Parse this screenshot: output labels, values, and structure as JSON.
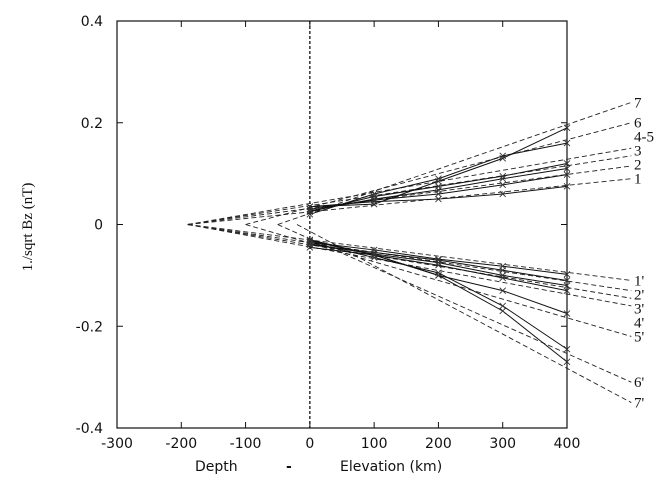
{
  "chart_data": {
    "type": "line",
    "ylabel": "1./sqrt Bz (nT)",
    "xlabel_left": "Depth",
    "xlabel_dash": "-",
    "xlabel_right": "Elevation (km)",
    "xlim": [
      -300,
      400
    ],
    "ylim": [
      -0.4,
      0.4
    ],
    "xticks": [
      -300,
      -200,
      -100,
      0,
      100,
      200,
      300,
      400
    ],
    "xtick_labels": [
      "-300",
      "-200",
      "-100",
      "0",
      "100",
      "200",
      "300",
      "400"
    ],
    "yticks": [
      -0.4,
      -0.2,
      0,
      0.2,
      0.4
    ],
    "ytick_labels": [
      "-0.4",
      "-0.2",
      "0",
      "0.2",
      "0.4"
    ],
    "reference_line_x": 0,
    "measured_x": [
      0,
      100,
      200,
      300,
      400
    ],
    "series": [
      {
        "name": "1",
        "values": [
          0.035,
          0.045,
          0.05,
          0.06,
          0.075
        ],
        "fit_start": [
          -190,
          0
        ],
        "fit_end_x": 500,
        "fit_end_y": 0.09
      },
      {
        "name": "2",
        "values": [
          0.03,
          0.048,
          0.06,
          0.078,
          0.098
        ],
        "fit_start": [
          -190,
          0
        ],
        "fit_end_x": 500,
        "fit_end_y": 0.115
      },
      {
        "name": "3",
        "values": [
          0.027,
          0.05,
          0.068,
          0.09,
          0.11
        ],
        "fit_start": [
          -190,
          0
        ],
        "fit_end_x": 500,
        "fit_end_y": 0.135
      },
      {
        "name": "4-5",
        "values": [
          0.025,
          0.055,
          0.075,
          0.095,
          0.12
        ],
        "fit_start": [
          -190,
          0
        ],
        "fit_end_x": 500,
        "fit_end_y": 0.15
      },
      {
        "name": "6",
        "values": [
          0.02,
          0.06,
          0.09,
          0.135,
          0.16
        ],
        "fit_start": [
          -100,
          0
        ],
        "fit_end_x": 500,
        "fit_end_y": 0.2
      },
      {
        "name": "7",
        "values": [
          0.035,
          0.04,
          0.085,
          0.13,
          0.19
        ],
        "fit_start": [
          -50,
          0
        ],
        "fit_end_x": 500,
        "fit_end_y": 0.24
      },
      {
        "name": "1'",
        "values": [
          -0.035,
          -0.05,
          -0.068,
          -0.082,
          -0.098
        ],
        "fit_start": [
          -190,
          0
        ],
        "fit_end_x": 500,
        "fit_end_y": -0.11
      },
      {
        "name": "2'",
        "values": [
          -0.04,
          -0.055,
          -0.07,
          -0.09,
          -0.11
        ],
        "fit_start": [
          -190,
          0
        ],
        "fit_end_x": 500,
        "fit_end_y": -0.13
      },
      {
        "name": "3'",
        "values": [
          -0.038,
          -0.058,
          -0.075,
          -0.1,
          -0.12
        ],
        "fit_start": [
          -190,
          0
        ],
        "fit_end_x": 500,
        "fit_end_y": -0.145
      },
      {
        "name": "4'",
        "values": [
          -0.032,
          -0.06,
          -0.08,
          -0.105,
          -0.13
        ],
        "fit_start": [
          -190,
          0
        ],
        "fit_end_x": 500,
        "fit_end_y": -0.16
      },
      {
        "name": "5'",
        "values": [
          -0.045,
          -0.06,
          -0.1,
          -0.13,
          -0.175
        ],
        "fit_start": [
          -100,
          0
        ],
        "fit_end_x": 500,
        "fit_end_y": -0.22
      },
      {
        "name": "6'",
        "values": [
          -0.035,
          -0.065,
          -0.095,
          -0.16,
          -0.245
        ],
        "fit_start": [
          -50,
          0
        ],
        "fit_end_x": 500,
        "fit_end_y": -0.31
      },
      {
        "name": "7'",
        "values": [
          -0.03,
          -0.06,
          -0.1,
          -0.17,
          -0.27
        ],
        "fit_start": [
          -20,
          0
        ],
        "fit_end_x": 500,
        "fit_end_y": -0.35
      }
    ]
  }
}
